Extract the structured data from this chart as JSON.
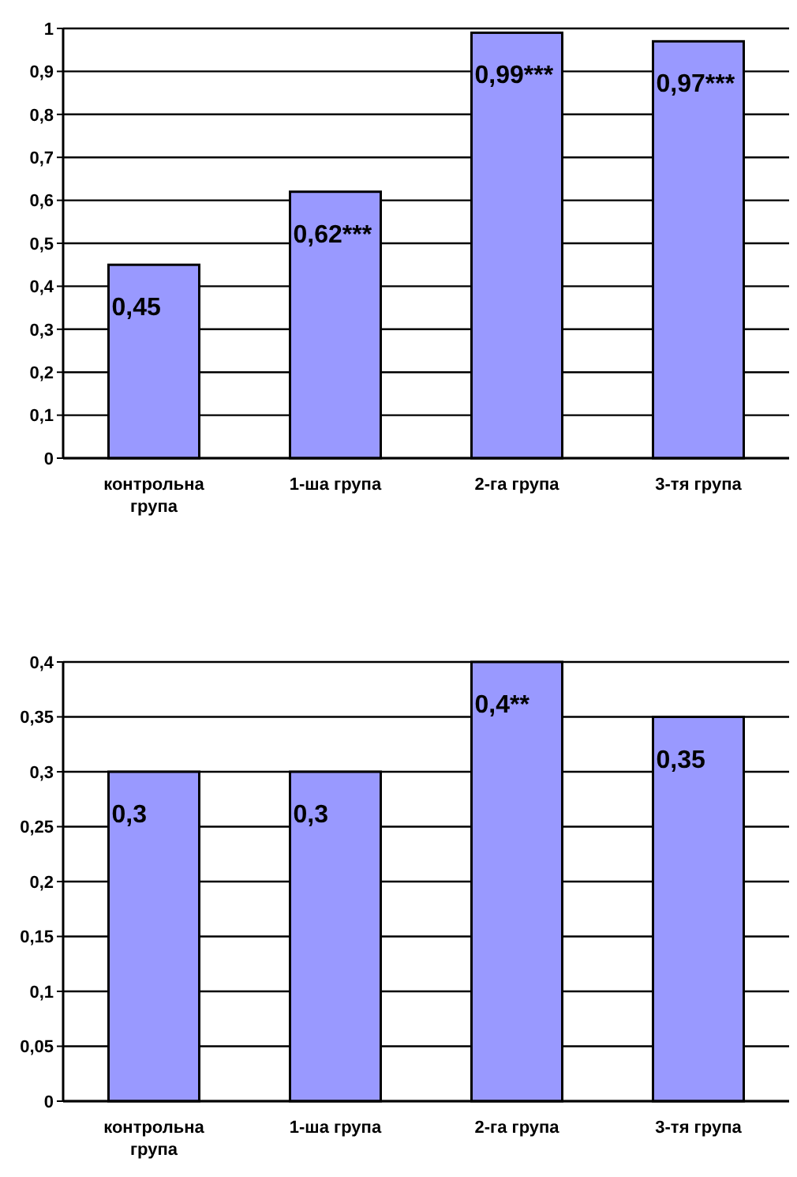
{
  "chart_data": [
    {
      "type": "bar",
      "categories": [
        "контрольна група",
        "1-ша група",
        "2-га група",
        "3-тя група"
      ],
      "series": [
        {
          "color": "#9999ff",
          "values": [
            0.45,
            0.62,
            0.99,
            0.97
          ],
          "value_labels": [
            "0,45",
            "0,62***",
            "0,99***",
            "0,97***"
          ]
        }
      ],
      "ylim": [
        0,
        1
      ],
      "yticks": [
        {
          "value": 0,
          "label": "0"
        },
        {
          "value": 0.1,
          "label": "0,1"
        },
        {
          "value": 0.2,
          "label": "0,2"
        },
        {
          "value": 0.3,
          "label": "0,3"
        },
        {
          "value": 0.4,
          "label": "0,4"
        },
        {
          "value": 0.5,
          "label": "0,5"
        },
        {
          "value": 0.6,
          "label": "0,6"
        },
        {
          "value": 0.7,
          "label": "0,7"
        },
        {
          "value": 0.8,
          "label": "0,8"
        },
        {
          "value": 0.9,
          "label": "0,9"
        },
        {
          "value": 1,
          "label": "1"
        }
      ],
      "grid": "y"
    },
    {
      "type": "bar",
      "categories": [
        "контрольна група",
        "1-ша група",
        "2-га група",
        "3-тя група"
      ],
      "series": [
        {
          "color": "#9999ff",
          "values": [
            0.3,
            0.3,
            0.4,
            0.35
          ],
          "value_labels": [
            "0,3",
            "0,3",
            "0,4**",
            "0,35"
          ]
        }
      ],
      "ylim": [
        0,
        0.4
      ],
      "yticks": [
        {
          "value": 0,
          "label": "0"
        },
        {
          "value": 0.05,
          "label": "0,05"
        },
        {
          "value": 0.1,
          "label": "0,1"
        },
        {
          "value": 0.15,
          "label": "0,15"
        },
        {
          "value": 0.2,
          "label": "0,2"
        },
        {
          "value": 0.25,
          "label": "0,25"
        },
        {
          "value": 0.3,
          "label": "0,3"
        },
        {
          "value": 0.35,
          "label": "0,35"
        },
        {
          "value": 0.4,
          "label": "0,4"
        }
      ],
      "grid": "y"
    }
  ]
}
